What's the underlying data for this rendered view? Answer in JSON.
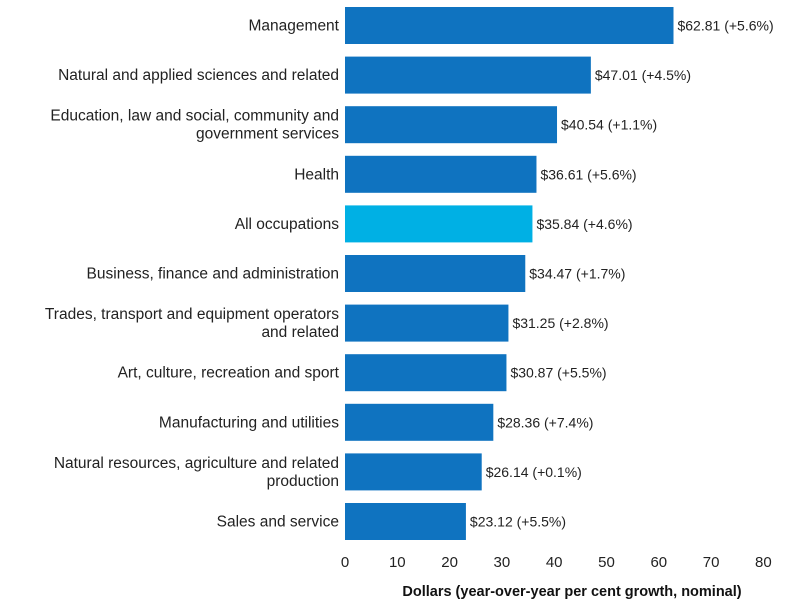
{
  "chart_data": {
    "type": "bar",
    "orientation": "horizontal",
    "title": "",
    "xlabel": "Dollars (year-over-year per cent growth, nominal)",
    "ylabel": "",
    "xlim": [
      0,
      80
    ],
    "xticks": [
      0,
      10,
      20,
      30,
      40,
      50,
      60,
      70,
      80
    ],
    "grid": false,
    "colors": {
      "default": "#0F73C0",
      "highlight": "#00B0E4"
    },
    "bars": [
      {
        "category": [
          "Management"
        ],
        "value": 62.81,
        "label": "$62.81 (+5.6%)",
        "highlight": false
      },
      {
        "category": [
          "Natural and applied sciences and related"
        ],
        "value": 47.01,
        "label": "$47.01 (+4.5%)",
        "highlight": false
      },
      {
        "category": [
          "Education, law and social, community and",
          "government services"
        ],
        "value": 40.54,
        "label": "$40.54 (+1.1%)",
        "highlight": false
      },
      {
        "category": [
          "Health"
        ],
        "value": 36.61,
        "label": "$36.61 (+5.6%)",
        "highlight": false
      },
      {
        "category": [
          "All occupations"
        ],
        "value": 35.84,
        "label": "$35.84 (+4.6%)",
        "highlight": true
      },
      {
        "category": [
          "Business, finance and administration"
        ],
        "value": 34.47,
        "label": "$34.47 (+1.7%)",
        "highlight": false
      },
      {
        "category": [
          "Trades, transport and equipment operators",
          "and related"
        ],
        "value": 31.25,
        "label": "$31.25 (+2.8%)",
        "highlight": false
      },
      {
        "category": [
          "Art, culture, recreation and sport"
        ],
        "value": 30.87,
        "label": "$30.87 (+5.5%)",
        "highlight": false
      },
      {
        "category": [
          "Manufacturing and utilities"
        ],
        "value": 28.36,
        "label": "$28.36 (+7.4%)",
        "highlight": false
      },
      {
        "category": [
          "Natural resources, agriculture and related",
          "production"
        ],
        "value": 26.14,
        "label": "$26.14 (+0.1%)",
        "highlight": false
      },
      {
        "category": [
          "Sales and service"
        ],
        "value": 23.12,
        "label": "$23.12 (+5.5%)",
        "highlight": false
      }
    ]
  }
}
